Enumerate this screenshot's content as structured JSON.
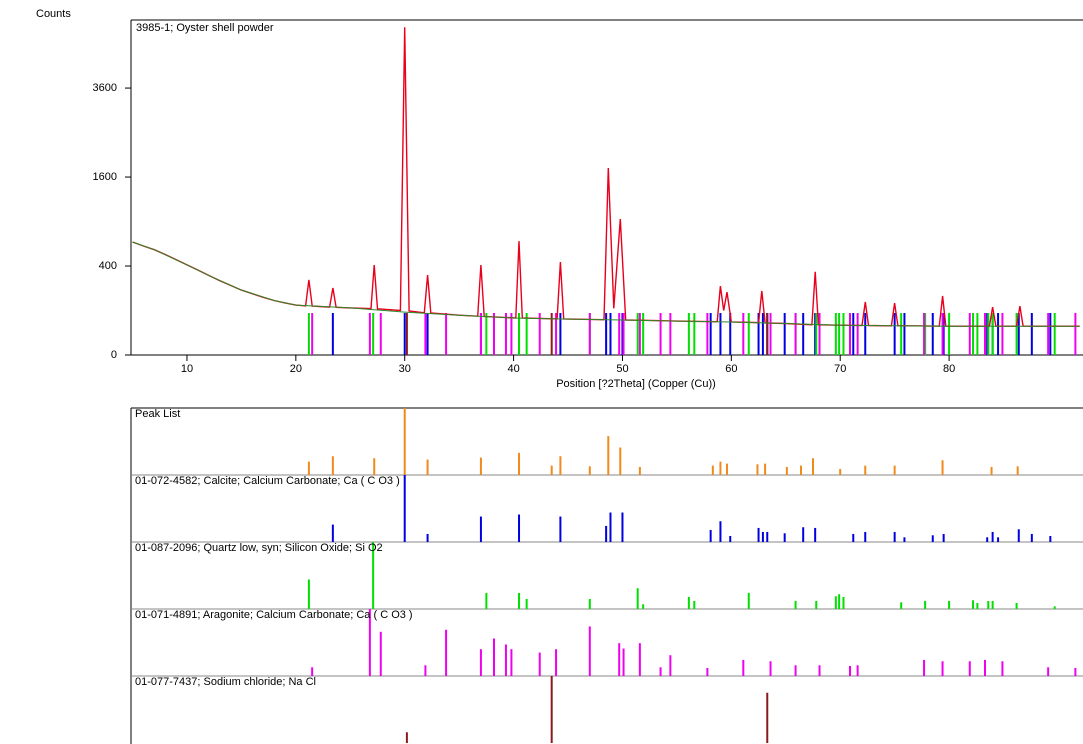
{
  "chart_data": [
    {
      "type": "line",
      "y_label": "Counts",
      "x_label": "Position [?2Theta] (Copper (Cu))",
      "yscale": "sqrt",
      "xlim": [
        4.86,
        92.3
      ],
      "ylim": [
        0,
        5670
      ],
      "xticks": [
        10,
        20,
        30,
        40,
        50,
        60,
        70,
        80
      ],
      "yticks": [
        0,
        400,
        1600,
        3600
      ],
      "series": [
        {
          "name": "3985-1; Oyster shell powder",
          "color": "#e8001c",
          "x": [
            5,
            6,
            7,
            8,
            9,
            10,
            11,
            12,
            13,
            14,
            15,
            16,
            17,
            18,
            19,
            20,
            20.9,
            21.2,
            21.5,
            23.1,
            23.4,
            23.7,
            25,
            26.9,
            27.2,
            27.5,
            29.6,
            30,
            30.4,
            31.8,
            32.1,
            32.4,
            35,
            36.7,
            37,
            37.3,
            40.2,
            40.5,
            40.8,
            42,
            44,
            44.3,
            44.6,
            47,
            48.3,
            48.7,
            49.2,
            49.8,
            50.3,
            52,
            55,
            57,
            58.7,
            59,
            59.3,
            59.6,
            60,
            62.5,
            62.8,
            63.1,
            65,
            67.4,
            67.7,
            68,
            70,
            72,
            72.3,
            72.6,
            74.7,
            75,
            75.3,
            77,
            79.1,
            79.4,
            79.7,
            82,
            83.7,
            84,
            84.3,
            86.2,
            86.5,
            86.8,
            90,
            92
          ],
          "values": [
            645,
            600,
            560,
            510,
            460,
            410,
            365,
            320,
            280,
            245,
            213,
            190,
            168,
            150,
            137,
            126,
            122,
            285,
            121,
            116,
            227,
            115,
            112,
            109,
            409,
            108,
            100,
            5430,
            98,
            90,
            323,
            89,
            80,
            76,
            409,
            75,
            69,
            656,
            69,
            68,
            66,
            437,
            66,
            64,
            63,
            1766,
            110,
            934,
            62,
            61,
            58,
            57,
            56,
            240,
            100,
            200,
            55,
            53,
            207,
            52,
            50,
            46,
            350,
            46,
            45,
            44,
            142,
            44,
            43,
            136,
            43,
            43,
            42,
            176,
            42,
            42,
            42,
            116,
            42,
            42,
            121,
            42,
            42,
            42
          ]
        },
        {
          "color": "#2a8a2a",
          "x": [
            5,
            7,
            10,
            12,
            15,
            18,
            20,
            25,
            30,
            35,
            40,
            45,
            50,
            55,
            60,
            65,
            70,
            75,
            80,
            85,
            92
          ],
          "values": [
            645,
            560,
            410,
            320,
            213,
            150,
            126,
            112,
            93,
            80,
            69,
            65,
            62,
            58,
            55,
            50,
            45,
            43,
            42,
            42,
            42
          ]
        }
      ]
    },
    {
      "type": "stick",
      "xlim": [
        4.86,
        92.3
      ],
      "ylim": [
        0,
        100
      ],
      "panels": [
        {
          "name": "Peak List",
          "color": "#f08a1c",
          "label_color": "#000000",
          "positions": [
            21.2,
            23.4,
            27.2,
            30.0,
            32.1,
            37.0,
            40.5,
            43.5,
            44.3,
            47.0,
            48.7,
            49.8,
            51.6,
            58.3,
            59.0,
            59.6,
            62.4,
            63.1,
            65.1,
            66.4,
            67.5,
            70.0,
            72.3,
            75.0,
            79.4,
            83.9,
            86.3
          ],
          "intensities": [
            20,
            28,
            25,
            100,
            23,
            26,
            33,
            14,
            28,
            13,
            58,
            41,
            12,
            14,
            20,
            17,
            16,
            17,
            12,
            14,
            25,
            9,
            14,
            14,
            22,
            12,
            13
          ]
        },
        {
          "name": "01-072-4582; Calcite; Calcium Carbonate; Ca ( C O3 )",
          "color": "#0000e0",
          "label_color": "#0000e0",
          "positions": [
            23.4,
            30.0,
            32.1,
            37.0,
            40.5,
            44.3,
            48.5,
            48.9,
            50.0,
            58.1,
            59.0,
            59.9,
            62.5,
            62.9,
            63.3,
            64.9,
            66.6,
            67.7,
            71.2,
            72.3,
            75.0,
            75.9,
            78.5,
            79.5,
            83.5,
            84.0,
            84.5,
            86.4,
            87.6,
            89.3
          ],
          "intensities": [
            26,
            100,
            12,
            38,
            41,
            38,
            24,
            44,
            44,
            18,
            31,
            9,
            21,
            15,
            15,
            13,
            22,
            21,
            12,
            15,
            15,
            7,
            10,
            12,
            7,
            15,
            7,
            19,
            12,
            9
          ]
        },
        {
          "name": "01-087-2096; Quartz low, syn; Silicon Oxide; Si O2",
          "color": "#00e000",
          "label_color": "#00d000",
          "positions": [
            21.2,
            27.1,
            37.5,
            40.5,
            41.2,
            47.0,
            51.4,
            51.9,
            56.1,
            56.6,
            61.6,
            65.9,
            67.8,
            69.6,
            69.9,
            70.3,
            75.6,
            77.8,
            80.0,
            82.2,
            82.6,
            83.6,
            84.0,
            86.2,
            89.7
          ],
          "intensities": [
            44,
            100,
            24,
            24,
            15,
            15,
            31,
            7,
            18,
            12,
            24,
            12,
            12,
            19,
            22,
            18,
            10,
            12,
            12,
            13,
            9,
            12,
            12,
            9,
            4
          ]
        },
        {
          "name": "01-071-4891; Aragonite; Calcium Carbonate; Ca ( C O3 )",
          "color": "#f000f0",
          "label_color": "#f000f0",
          "positions": [
            21.5,
            26.8,
            27.8,
            31.9,
            33.8,
            37.0,
            38.2,
            39.3,
            39.8,
            42.4,
            43.9,
            47.0,
            49.7,
            50.1,
            51.6,
            53.5,
            54.4,
            57.8,
            61.1,
            63.6,
            65.9,
            68.1,
            70.9,
            71.6,
            77.7,
            79.4,
            81.9,
            83.3,
            84.9,
            89.1,
            91.6
          ],
          "intensities": [
            13,
            100,
            66,
            16,
            69,
            40,
            56,
            47,
            40,
            35,
            40,
            74,
            49,
            41,
            49,
            13,
            31,
            12,
            24,
            22,
            16,
            16,
            15,
            16,
            24,
            22,
            22,
            24,
            22,
            13,
            12
          ]
        },
        {
          "name": "01-077-7437; Sodium chloride; Na Cl",
          "color": "#8b1a1a",
          "label_color": "#8b1a1a",
          "positions": [
            30.2,
            43.5,
            63.3
          ],
          "intensities": [
            16,
            100,
            75
          ]
        }
      ]
    }
  ]
}
